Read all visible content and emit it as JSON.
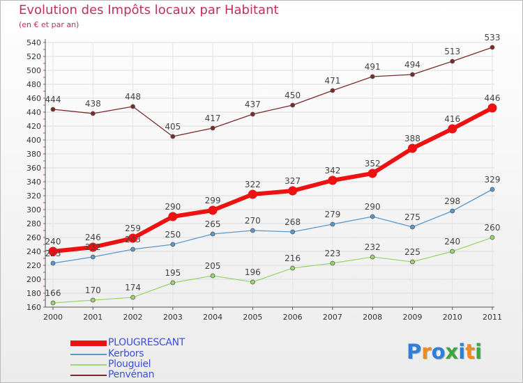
{
  "title": "Evolution des Impôts locaux par Habitant",
  "subtitle": "(en € et par an)",
  "logo": {
    "text": "Proxiti",
    "letter_colors": [
      "#2e7fd6",
      "#f08a1c",
      "#2e7fd6",
      "#3aa83a",
      "#2e7fd6",
      "#f08a1c",
      "#3aa83a"
    ]
  },
  "chart_data": {
    "type": "line",
    "title": "Evolution des Impôts locaux par Habitant",
    "subtitle": "(en € et par an)",
    "xlabel": "",
    "ylabel": "",
    "categories": [
      "2000",
      "2001",
      "2002",
      "2003",
      "2004",
      "2005",
      "2006",
      "2007",
      "2008",
      "2009",
      "2010",
      "2011"
    ],
    "ylim": [
      160,
      540
    ],
    "yticks": [
      160,
      180,
      200,
      220,
      240,
      260,
      280,
      300,
      320,
      340,
      360,
      380,
      400,
      420,
      440,
      460,
      480,
      500,
      520,
      540
    ],
    "grid": true,
    "legend_position": "bottom-left",
    "series": [
      {
        "name": "PLOUGRESCANT",
        "color": "#ee1111",
        "values": [
          240,
          246,
          259,
          290,
          299,
          322,
          327,
          342,
          352,
          388,
          416,
          446
        ]
      },
      {
        "name": "Kerbors",
        "color": "#5b98cc",
        "values": [
          223,
          232,
          243,
          250,
          265,
          270,
          268,
          279,
          290,
          275,
          298,
          329
        ]
      },
      {
        "name": "Plouguiel",
        "color": "#9ad66a",
        "values": [
          166,
          170,
          174,
          195,
          205,
          196,
          216,
          223,
          232,
          225,
          240,
          260
        ]
      },
      {
        "name": "Penvénan",
        "color": "#7a2a2a",
        "values": [
          444,
          438,
          448,
          405,
          417,
          437,
          450,
          471,
          491,
          494,
          513,
          533
        ]
      }
    ]
  }
}
